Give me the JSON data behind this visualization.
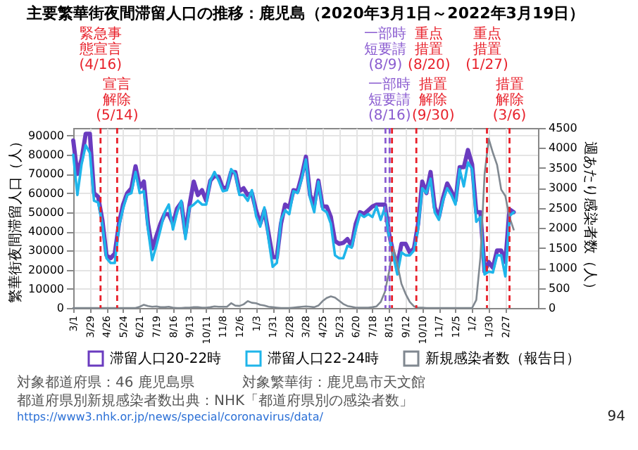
{
  "chart_data": {
    "type": "line",
    "title": "主要繁華街夜間滞留人口の推移：鹿児島（2020年3月1日～2022年3月19日）",
    "ylabel": "繁華街夜間滞留人口（人）",
    "y2label": "週あたり感染者数（人）",
    "x": [
      "2020-03-01",
      "2020-03-08",
      "2020-03-15",
      "2020-03-22",
      "2020-03-29",
      "2020-04-05",
      "2020-04-12",
      "2020-04-19",
      "2020-04-26",
      "2020-05-03",
      "2020-05-10",
      "2020-05-17",
      "2020-05-24",
      "2020-05-31",
      "2020-06-07",
      "2020-06-14",
      "2020-06-21",
      "2020-06-28",
      "2020-07-05",
      "2020-07-12",
      "2020-07-19",
      "2020-07-26",
      "2020-08-02",
      "2020-08-09",
      "2020-08-16",
      "2020-08-23",
      "2020-08-30",
      "2020-09-06",
      "2020-09-13",
      "2020-09-20",
      "2020-09-27",
      "2020-10-04",
      "2020-10-11",
      "2020-10-18",
      "2020-10-25",
      "2020-11-01",
      "2020-11-08",
      "2020-11-15",
      "2020-11-22",
      "2020-11-29",
      "2020-12-06",
      "2020-12-13",
      "2020-12-20",
      "2020-12-27",
      "2021-01-03",
      "2021-01-10",
      "2021-01-17",
      "2021-01-24",
      "2021-01-31",
      "2021-02-07",
      "2021-02-14",
      "2021-02-21",
      "2021-02-28",
      "2021-03-07",
      "2021-03-14",
      "2021-03-21",
      "2021-03-28",
      "2021-04-04",
      "2021-04-11",
      "2021-04-18",
      "2021-04-25",
      "2021-05-02",
      "2021-05-09",
      "2021-05-16",
      "2021-05-23",
      "2021-05-30",
      "2021-06-06",
      "2021-06-13",
      "2021-06-20",
      "2021-06-27",
      "2021-07-04",
      "2021-07-11",
      "2021-07-18",
      "2021-07-25",
      "2021-08-01",
      "2021-08-08",
      "2021-08-15",
      "2021-08-22",
      "2021-08-29",
      "2021-09-05",
      "2021-09-12",
      "2021-09-19",
      "2021-09-26",
      "2021-10-03",
      "2021-10-10",
      "2021-10-17",
      "2021-10-24",
      "2021-10-31",
      "2021-11-07",
      "2021-11-14",
      "2021-11-21",
      "2021-11-28",
      "2021-12-05",
      "2021-12-12",
      "2021-12-19",
      "2021-12-26",
      "2022-01-02",
      "2022-01-09",
      "2022-01-16",
      "2022-01-23",
      "2022-01-30",
      "2022-02-06",
      "2022-02-13",
      "2022-02-20",
      "2022-02-27",
      "2022-03-06",
      "2022-03-13"
    ],
    "series": [
      {
        "name": "滞留人口20-22時",
        "color": "#6a3bbf",
        "values": [
          87500,
          70000,
          77500,
          91000,
          91000,
          60000,
          58000,
          46000,
          27500,
          26000,
          28500,
          44000,
          54000,
          60000,
          62500,
          74000,
          63000,
          66000,
          44000,
          31000,
          37500,
          44000,
          49000,
          49000,
          44000,
          52000,
          55000,
          39000,
          54000,
          66000,
          59000,
          61500,
          56000,
          66500,
          69000,
          68500,
          62500,
          63000,
          71000,
          71000,
          61000,
          62500,
          59000,
          60000,
          51000,
          44000,
          51000,
          39000,
          26500,
          26500,
          44000,
          54000,
          52500,
          61500,
          61000,
          69000,
          79000,
          59000,
          54000,
          66500,
          53000,
          53000,
          47500,
          35000,
          33500,
          34000,
          36000,
          32500,
          44000,
          50000,
          49000,
          51000,
          53000,
          54000,
          54000,
          54000,
          39000,
          29000,
          22500,
          33500,
          33500,
          29000,
          31000,
          44000,
          66000,
          60000,
          71000,
          52500,
          47500,
          57500,
          65000,
          61000,
          56000,
          73500,
          73500,
          82500,
          75000,
          50000,
          50000,
          19000,
          24000,
          21000,
          30000,
          30000,
          24000,
          51500,
          50000
        ]
      },
      {
        "name": "滞留人口22-24時",
        "color": "#1fb5ea",
        "values": [
          80000,
          59000,
          75000,
          85000,
          81000,
          56000,
          55000,
          44000,
          26000,
          23500,
          23500,
          42500,
          52000,
          59000,
          60000,
          71000,
          60000,
          61000,
          41000,
          25000,
          32500,
          41000,
          50000,
          54000,
          41000,
          50000,
          56000,
          36000,
          52500,
          54000,
          56000,
          54000,
          54000,
          66500,
          71000,
          66500,
          61000,
          61500,
          72500,
          70000,
          59000,
          59000,
          56000,
          61500,
          48000,
          42500,
          52500,
          36000,
          21500,
          23500,
          46000,
          51000,
          49000,
          61000,
          60000,
          67500,
          77500,
          57500,
          50000,
          66000,
          51500,
          50000,
          44000,
          27500,
          26000,
          26000,
          32500,
          31500,
          41000,
          49000,
          47500,
          49000,
          47500,
          53000,
          46000,
          52500,
          37500,
          27500,
          17500,
          29000,
          27500,
          27500,
          30000,
          41000,
          62500,
          60000,
          67500,
          50000,
          46000,
          56000,
          62500,
          59000,
          54000,
          72500,
          63500,
          76000,
          72500,
          45000,
          47500,
          17500,
          19000,
          18500,
          27500,
          27500,
          16500,
          48000,
          50000
        ]
      },
      {
        "name": "新規感染者数（報告日）",
        "color": "#808890",
        "axis": "y2",
        "values": [
          0,
          0,
          0,
          0,
          0,
          0,
          0,
          0,
          0,
          0,
          0,
          0,
          0,
          0,
          0,
          0,
          30,
          80,
          50,
          30,
          40,
          20,
          20,
          30,
          10,
          0,
          0,
          10,
          10,
          20,
          20,
          10,
          10,
          20,
          40,
          30,
          30,
          30,
          120,
          60,
          50,
          90,
          170,
          130,
          120,
          80,
          60,
          30,
          20,
          10,
          0,
          0,
          0,
          10,
          20,
          30,
          40,
          30,
          20,
          60,
          170,
          250,
          290,
          260,
          180,
          100,
          50,
          30,
          10,
          10,
          10,
          10,
          20,
          40,
          150,
          400,
          900,
          1500,
          1100,
          600,
          350,
          150,
          40,
          10,
          10,
          0,
          0,
          0,
          0,
          0,
          0,
          0,
          0,
          0,
          0,
          0,
          0,
          200,
          1270,
          3350,
          4230,
          3880,
          3580,
          2960,
          2800,
          2270,
          1960
        ]
      }
    ],
    "xlim": [
      "2020-03-01",
      "2022-04-23"
    ],
    "xticks": [
      {
        "value": "2020-03-01",
        "label": "3/1"
      },
      {
        "value": "2020-03-29",
        "label": "3/29"
      },
      {
        "value": "2020-04-26",
        "label": "4/26"
      },
      {
        "value": "2020-05-24",
        "label": "5/24"
      },
      {
        "value": "2020-06-21",
        "label": "6/21"
      },
      {
        "value": "2020-07-19",
        "label": "7/19"
      },
      {
        "value": "2020-08-16",
        "label": "8/16"
      },
      {
        "value": "2020-09-13",
        "label": "9/13"
      },
      {
        "value": "2020-10-11",
        "label": "10/11"
      },
      {
        "value": "2020-11-08",
        "label": "11/8"
      },
      {
        "value": "2020-12-06",
        "label": "12/6"
      },
      {
        "value": "2021-01-03",
        "label": "1/3"
      },
      {
        "value": "2021-01-31",
        "label": "1/31"
      },
      {
        "value": "2021-02-28",
        "label": "2/28"
      },
      {
        "value": "2021-03-28",
        "label": "3/28"
      },
      {
        "value": "2021-04-25",
        "label": "4/25"
      },
      {
        "value": "2021-05-23",
        "label": "5/23"
      },
      {
        "value": "2021-06-20",
        "label": "6/20"
      },
      {
        "value": "2021-07-18",
        "label": "7/18"
      },
      {
        "value": "2021-08-15",
        "label": "8/15"
      },
      {
        "value": "2021-09-12",
        "label": "9/12"
      },
      {
        "value": "2021-10-10",
        "label": "10/10"
      },
      {
        "value": "2021-11-07",
        "label": "11/7"
      },
      {
        "value": "2021-12-05",
        "label": "12/5"
      },
      {
        "value": "2022-01-02",
        "label": "1/2"
      },
      {
        "value": "2022-01-30",
        "label": "1/30"
      },
      {
        "value": "2022-02-27",
        "label": "2/27"
      }
    ],
    "ylim": [
      0,
      94000
    ],
    "yticks": [
      0,
      10000,
      20000,
      30000,
      40000,
      50000,
      60000,
      70000,
      80000,
      90000
    ],
    "y2lim": [
      0,
      4500
    ],
    "y2ticks": [
      0,
      500,
      1000,
      1500,
      2000,
      2500,
      3000,
      3500,
      4000,
      4500
    ],
    "ref_lines": [
      {
        "axis": "x",
        "value": "2020-04-16",
        "label": "緊急事態宣言(4/16)",
        "color": "#e8202a",
        "line_style": "dashed"
      },
      {
        "axis": "x",
        "value": "2020-05-14",
        "label": "宣言解除(5/14)",
        "color": "#e8202a",
        "line_style": "dashed"
      },
      {
        "axis": "x",
        "value": "2021-08-09",
        "label": "一部時短要請(8/9)",
        "color": "#8a5cd0",
        "line_style": "dashed"
      },
      {
        "axis": "x",
        "value": "2021-08-16",
        "label": "一部時短要請(8/16)",
        "color": "#8a5cd0",
        "line_style": "dashed"
      },
      {
        "axis": "x",
        "value": "2021-08-20",
        "label": "重点措置(8/20)",
        "color": "#e8202a",
        "line_style": "dashed"
      },
      {
        "axis": "x",
        "value": "2021-09-30",
        "label": "措置解除(9/30)",
        "color": "#e8202a",
        "line_style": "dashed"
      },
      {
        "axis": "x",
        "value": "2022-01-27",
        "label": "重点措置(1/27)",
        "color": "#e8202a",
        "line_style": "dashed"
      },
      {
        "axis": "x",
        "value": "2022-03-06",
        "label": "措置解除(3/6)",
        "color": "#e8202a",
        "line_style": "dashed"
      }
    ],
    "annotations": [
      "対象都道府県：46 鹿児島県",
      "対象繁華街：鹿児島市天文館",
      "都道府県別新規感染者数出典：NHK「都道府県別の感染者数」",
      "https://www3.nhk.or.jp/news/special/coronavirus/data/",
      "94"
    ],
    "grid": true,
    "legend": "bottom",
    "line_style": "solid",
    "marker": "none"
  }
}
